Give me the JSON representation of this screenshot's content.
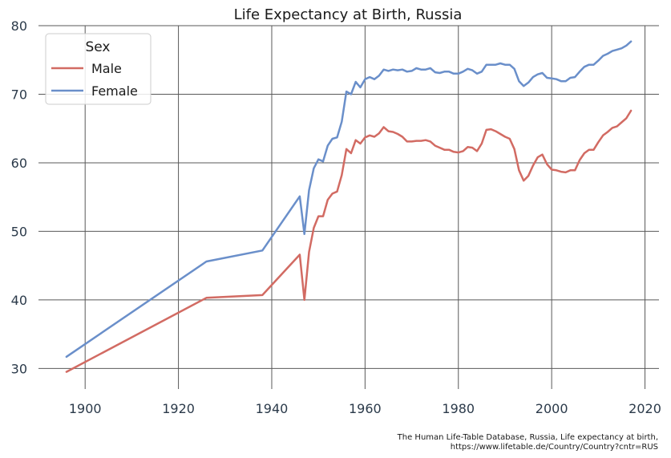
{
  "chart_data": {
    "type": "line",
    "title": "Life Expectancy at Birth, Russia",
    "xlabel": "",
    "ylabel": "",
    "xlim": [
      1890,
      2023
    ],
    "ylim": [
      27,
      80
    ],
    "xticks": [
      1900,
      1920,
      1940,
      1960,
      1980,
      2000,
      2020
    ],
    "yticks": [
      30,
      40,
      50,
      60,
      70,
      80
    ],
    "grid": true,
    "legend": {
      "title": "Sex",
      "placement": "top-left"
    },
    "series": [
      {
        "name": "Male",
        "color": "#d26b63",
        "x": [
          1896,
          1926,
          1938,
          1946,
          1947,
          1948,
          1949,
          1950,
          1951,
          1952,
          1953,
          1954,
          1955,
          1956,
          1957,
          1958,
          1959,
          1960,
          1961,
          1962,
          1963,
          1964,
          1965,
          1966,
          1967,
          1968,
          1969,
          1970,
          1971,
          1972,
          1973,
          1974,
          1975,
          1976,
          1977,
          1978,
          1979,
          1980,
          1981,
          1982,
          1983,
          1984,
          1985,
          1986,
          1987,
          1988,
          1989,
          1990,
          1991,
          1992,
          1993,
          1994,
          1995,
          1996,
          1997,
          1998,
          1999,
          2000,
          2001,
          2002,
          2003,
          2004,
          2005,
          2006,
          2007,
          2008,
          2009,
          2010,
          2011,
          2012,
          2013,
          2014,
          2015,
          2016,
          2017
        ],
        "y": [
          29.5,
          40.3,
          40.7,
          46.6,
          40.0,
          47.0,
          50.5,
          52.2,
          52.2,
          54.6,
          55.5,
          55.8,
          58.2,
          62.0,
          61.4,
          63.3,
          62.8,
          63.7,
          64.0,
          63.8,
          64.3,
          65.2,
          64.6,
          64.5,
          64.2,
          63.8,
          63.1,
          63.1,
          63.2,
          63.2,
          63.3,
          63.1,
          62.5,
          62.2,
          61.9,
          61.9,
          61.6,
          61.5,
          61.7,
          62.3,
          62.2,
          61.7,
          62.8,
          64.8,
          64.9,
          64.6,
          64.2,
          63.8,
          63.5,
          62.0,
          58.9,
          57.4,
          58.1,
          59.6,
          60.8,
          61.2,
          59.8,
          59.0,
          58.9,
          58.7,
          58.6,
          58.9,
          58.9,
          60.4,
          61.4,
          61.9,
          61.9,
          63.0,
          64.0,
          64.5,
          65.1,
          65.3,
          65.9,
          66.5,
          67.6
        ]
      },
      {
        "name": "Female",
        "color": "#6a8fca",
        "x": [
          1896,
          1926,
          1938,
          1946,
          1947,
          1948,
          1949,
          1950,
          1951,
          1952,
          1953,
          1954,
          1955,
          1956,
          1957,
          1958,
          1959,
          1960,
          1961,
          1962,
          1963,
          1964,
          1965,
          1966,
          1967,
          1968,
          1969,
          1970,
          1971,
          1972,
          1973,
          1974,
          1975,
          1976,
          1977,
          1978,
          1979,
          1980,
          1981,
          1982,
          1983,
          1984,
          1985,
          1986,
          1987,
          1988,
          1989,
          1990,
          1991,
          1992,
          1993,
          1994,
          1995,
          1996,
          1997,
          1998,
          1999,
          2000,
          2001,
          2002,
          2003,
          2004,
          2005,
          2006,
          2007,
          2008,
          2009,
          2010,
          2011,
          2012,
          2013,
          2014,
          2015,
          2016,
          2017
        ],
        "y": [
          31.7,
          45.6,
          47.2,
          55.1,
          49.6,
          56.0,
          59.2,
          60.5,
          60.2,
          62.5,
          63.5,
          63.7,
          66.0,
          70.4,
          70.0,
          71.8,
          71.0,
          72.2,
          72.5,
          72.2,
          72.7,
          73.6,
          73.4,
          73.6,
          73.5,
          73.6,
          73.3,
          73.4,
          73.8,
          73.6,
          73.6,
          73.8,
          73.2,
          73.1,
          73.3,
          73.3,
          73.0,
          73.0,
          73.3,
          73.7,
          73.5,
          73.0,
          73.3,
          74.3,
          74.3,
          74.3,
          74.5,
          74.3,
          74.3,
          73.7,
          71.9,
          71.2,
          71.7,
          72.5,
          72.9,
          73.1,
          72.4,
          72.3,
          72.2,
          71.9,
          71.9,
          72.4,
          72.5,
          73.3,
          74.0,
          74.3,
          74.3,
          74.9,
          75.6,
          75.9,
          76.3,
          76.5,
          76.7,
          77.1,
          77.7
        ]
      }
    ],
    "source_lines": [
      "The Human Life-Table Database, Russia, Life expectancy at birth,",
      "https://www.lifetable.de/Country/Country?cntr=RUS"
    ]
  }
}
